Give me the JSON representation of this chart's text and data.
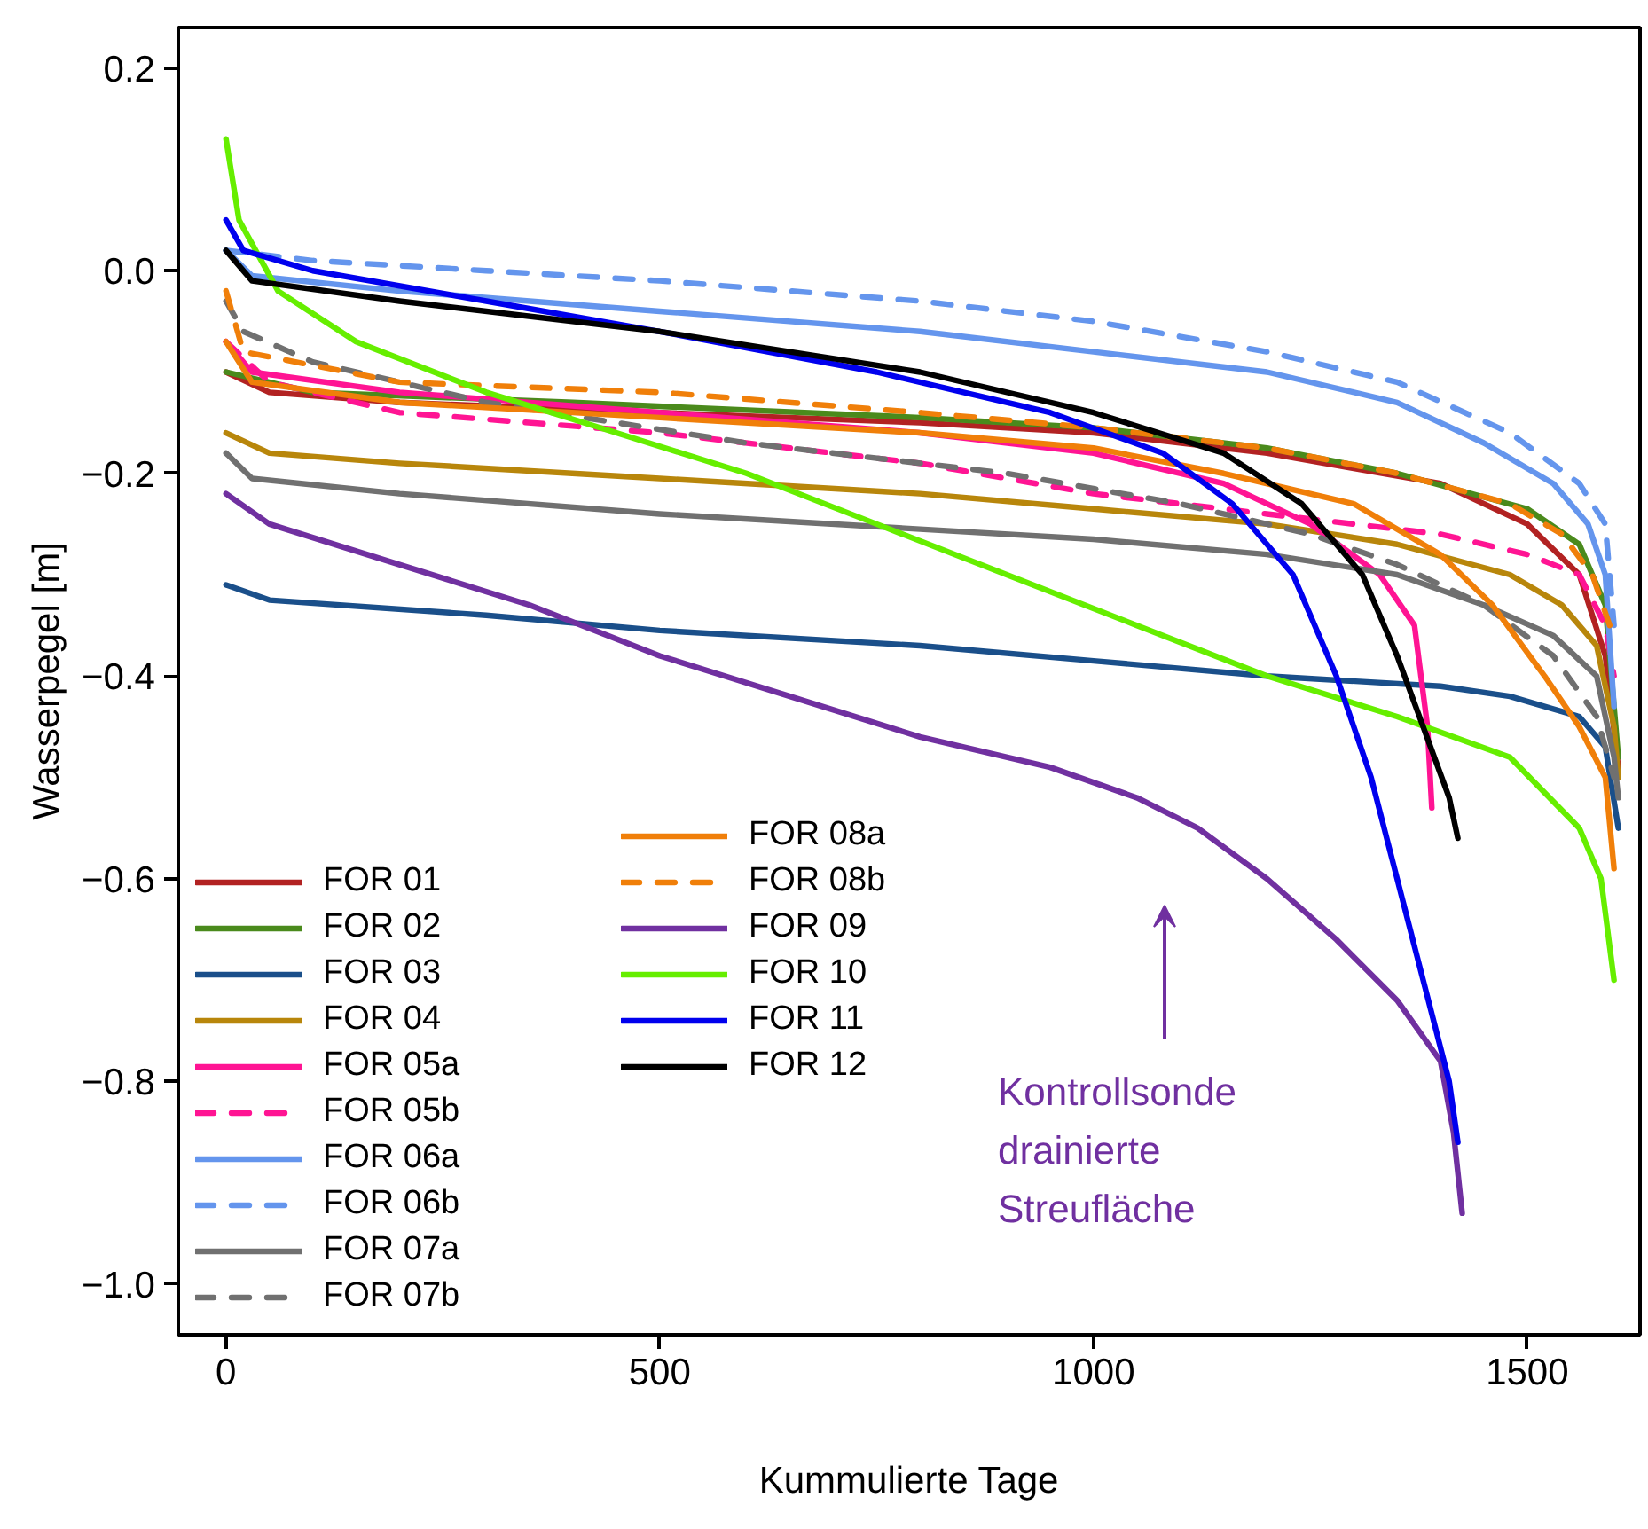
{
  "chart_data": {
    "type": "line",
    "xlabel": "Kummulierte Tage",
    "ylabel": "Wasserpegel [m]",
    "xlim": [
      -55,
      1630
    ],
    "ylim": [
      -1.05,
      0.24
    ],
    "xticks": [
      0,
      500,
      1000,
      1500
    ],
    "yticks": [
      {
        "value": 0.2,
        "label": "0.2"
      },
      {
        "value": 0.0,
        "label": "0.0"
      },
      {
        "value": -0.2,
        "label": "−0.2"
      },
      {
        "value": -0.4,
        "label": "−0.4"
      },
      {
        "value": -0.6,
        "label": "−0.6"
      },
      {
        "value": -0.8,
        "label": "−0.8"
      },
      {
        "value": -1.0,
        "label": "−1.0"
      }
    ],
    "grid": false,
    "legend": "bottom left",
    "marker": "none",
    "annotations": [
      "Kontrollsonde\ndrainierte\nStreufläche"
    ],
    "series": [
      {
        "name": "FOR 01",
        "color": "#b22222",
        "line_style": "solid",
        "x": [
          0,
          50,
          200,
          500,
          800,
          1000,
          1200,
          1300,
          1400,
          1500,
          1560,
          1590,
          1605
        ],
        "values": [
          -0.1,
          -0.12,
          -0.13,
          -0.14,
          -0.15,
          -0.16,
          -0.18,
          -0.195,
          -0.21,
          -0.25,
          -0.3,
          -0.38,
          -0.49
        ]
      },
      {
        "name": "FOR 02",
        "color": "#4a8a1c",
        "line_style": "solid",
        "x": [
          0,
          100,
          400,
          800,
          1000,
          1200,
          1350,
          1500,
          1560,
          1590,
          1605
        ],
        "values": [
          -0.1,
          -0.12,
          -0.13,
          -0.145,
          -0.155,
          -0.175,
          -0.2,
          -0.235,
          -0.27,
          -0.33,
          -0.48
        ]
      },
      {
        "name": "FOR 03",
        "color": "#1a4f8a",
        "line_style": "solid",
        "x": [
          0,
          50,
          300,
          500,
          800,
          1000,
          1200,
          1400,
          1480,
          1560,
          1590,
          1605
        ],
        "values": [
          -0.31,
          -0.325,
          -0.34,
          -0.355,
          -0.37,
          -0.385,
          -0.4,
          -0.41,
          -0.42,
          -0.44,
          -0.47,
          -0.55
        ]
      },
      {
        "name": "FOR 04",
        "color": "#b8860b",
        "line_style": "solid",
        "x": [
          0,
          50,
          200,
          500,
          800,
          1000,
          1200,
          1350,
          1480,
          1540,
          1580,
          1600,
          1605
        ],
        "values": [
          -0.16,
          -0.18,
          -0.19,
          -0.205,
          -0.22,
          -0.235,
          -0.25,
          -0.27,
          -0.3,
          -0.33,
          -0.37,
          -0.45,
          -0.5
        ]
      },
      {
        "name": "FOR 05a",
        "color": "#ff1493",
        "line_style": "solid",
        "x": [
          0,
          30,
          200,
          500,
          800,
          1000,
          1150,
          1250,
          1330,
          1370,
          1385,
          1390
        ],
        "values": [
          -0.07,
          -0.1,
          -0.12,
          -0.14,
          -0.16,
          -0.18,
          -0.21,
          -0.25,
          -0.3,
          -0.35,
          -0.45,
          -0.53
        ]
      },
      {
        "name": "FOR 05b",
        "color": "#ff1493",
        "line_style": "dashed",
        "x": [
          0,
          50,
          200,
          500,
          800,
          1000,
          1200,
          1400,
          1500,
          1560,
          1590,
          1600
        ],
        "values": [
          -0.07,
          -0.11,
          -0.14,
          -0.16,
          -0.19,
          -0.22,
          -0.24,
          -0.26,
          -0.28,
          -0.3,
          -0.35,
          -0.4
        ]
      },
      {
        "name": "FOR 06a",
        "color": "#6495ed",
        "line_style": "solid",
        "x": [
          0,
          30,
          200,
          500,
          800,
          1000,
          1200,
          1350,
          1450,
          1530,
          1570,
          1590,
          1600
        ],
        "values": [
          0.02,
          -0.005,
          -0.02,
          -0.04,
          -0.06,
          -0.08,
          -0.1,
          -0.13,
          -0.17,
          -0.21,
          -0.25,
          -0.3,
          -0.43
        ]
      },
      {
        "name": "FOR 06b",
        "color": "#6495ed",
        "line_style": "dashed",
        "x": [
          0,
          100,
          300,
          500,
          800,
          1000,
          1200,
          1350,
          1480,
          1560,
          1590,
          1600
        ],
        "values": [
          0.02,
          0.01,
          0.0,
          -0.01,
          -0.03,
          -0.05,
          -0.08,
          -0.11,
          -0.16,
          -0.21,
          -0.25,
          -0.35
        ]
      },
      {
        "name": "FOR 07a",
        "color": "#707070",
        "line_style": "solid",
        "x": [
          0,
          30,
          200,
          500,
          800,
          1000,
          1200,
          1350,
          1450,
          1530,
          1580,
          1600,
          1605
        ],
        "values": [
          -0.18,
          -0.205,
          -0.22,
          -0.24,
          -0.255,
          -0.265,
          -0.28,
          -0.3,
          -0.33,
          -0.36,
          -0.4,
          -0.48,
          -0.52
        ]
      },
      {
        "name": "FOR 07b",
        "color": "#707070",
        "line_style": "dashed",
        "x": [
          0,
          20,
          100,
          300,
          600,
          900,
          1100,
          1250,
          1350,
          1450,
          1530,
          1580,
          1600
        ],
        "values": [
          -0.03,
          -0.06,
          -0.09,
          -0.13,
          -0.17,
          -0.2,
          -0.23,
          -0.26,
          -0.29,
          -0.33,
          -0.38,
          -0.44,
          -0.5
        ]
      },
      {
        "name": "FOR 08a",
        "color": "#f07f09",
        "line_style": "solid",
        "x": [
          0,
          30,
          200,
          500,
          800,
          1000,
          1150,
          1300,
          1400,
          1460,
          1520,
          1560,
          1590,
          1600
        ],
        "values": [
          -0.07,
          -0.11,
          -0.13,
          -0.145,
          -0.16,
          -0.175,
          -0.2,
          -0.23,
          -0.28,
          -0.33,
          -0.4,
          -0.45,
          -0.5,
          -0.59
        ]
      },
      {
        "name": "FOR 08b",
        "color": "#f07f09",
        "line_style": "dashed",
        "x": [
          0,
          20,
          200,
          500,
          800,
          1000,
          1200,
          1350,
          1480,
          1540,
          1575,
          1595
        ],
        "values": [
          -0.02,
          -0.08,
          -0.11,
          -0.12,
          -0.14,
          -0.155,
          -0.175,
          -0.2,
          -0.23,
          -0.26,
          -0.3,
          -0.35
        ]
      },
      {
        "name": "FOR 09",
        "color": "#7030a0",
        "line_style": "solid",
        "x": [
          0,
          50,
          200,
          350,
          500,
          650,
          800,
          950,
          1050,
          1120,
          1200,
          1280,
          1350,
          1400,
          1415,
          1425
        ],
        "values": [
          -0.22,
          -0.25,
          -0.29,
          -0.33,
          -0.38,
          -0.42,
          -0.46,
          -0.49,
          -0.52,
          -0.55,
          -0.6,
          -0.66,
          -0.72,
          -0.78,
          -0.85,
          -0.93
        ]
      },
      {
        "name": "FOR 10",
        "color": "#66ee00",
        "line_style": "solid",
        "x": [
          0,
          15,
          60,
          150,
          300,
          450,
          600,
          750,
          900,
          1050,
          1200,
          1350,
          1480,
          1560,
          1585,
          1600
        ],
        "values": [
          0.13,
          0.05,
          -0.02,
          -0.07,
          -0.12,
          -0.16,
          -0.2,
          -0.25,
          -0.3,
          -0.35,
          -0.4,
          -0.44,
          -0.48,
          -0.55,
          -0.6,
          -0.7
        ]
      },
      {
        "name": "FOR 11",
        "color": "#0000ee",
        "line_style": "solid",
        "x": [
          0,
          20,
          100,
          300,
          500,
          750,
          950,
          1080,
          1160,
          1230,
          1280,
          1320,
          1350,
          1380,
          1410,
          1420
        ],
        "values": [
          0.05,
          0.02,
          0.0,
          -0.03,
          -0.06,
          -0.1,
          -0.14,
          -0.18,
          -0.23,
          -0.3,
          -0.4,
          -0.5,
          -0.6,
          -0.7,
          -0.8,
          -0.86
        ]
      },
      {
        "name": "FOR 12",
        "color": "#000000",
        "line_style": "solid",
        "x": [
          0,
          30,
          200,
          500,
          800,
          1000,
          1150,
          1240,
          1310,
          1350,
          1380,
          1410,
          1420
        ],
        "values": [
          0.02,
          -0.01,
          -0.03,
          -0.06,
          -0.1,
          -0.14,
          -0.18,
          -0.23,
          -0.3,
          -0.38,
          -0.45,
          -0.52,
          -0.56
        ]
      }
    ]
  }
}
